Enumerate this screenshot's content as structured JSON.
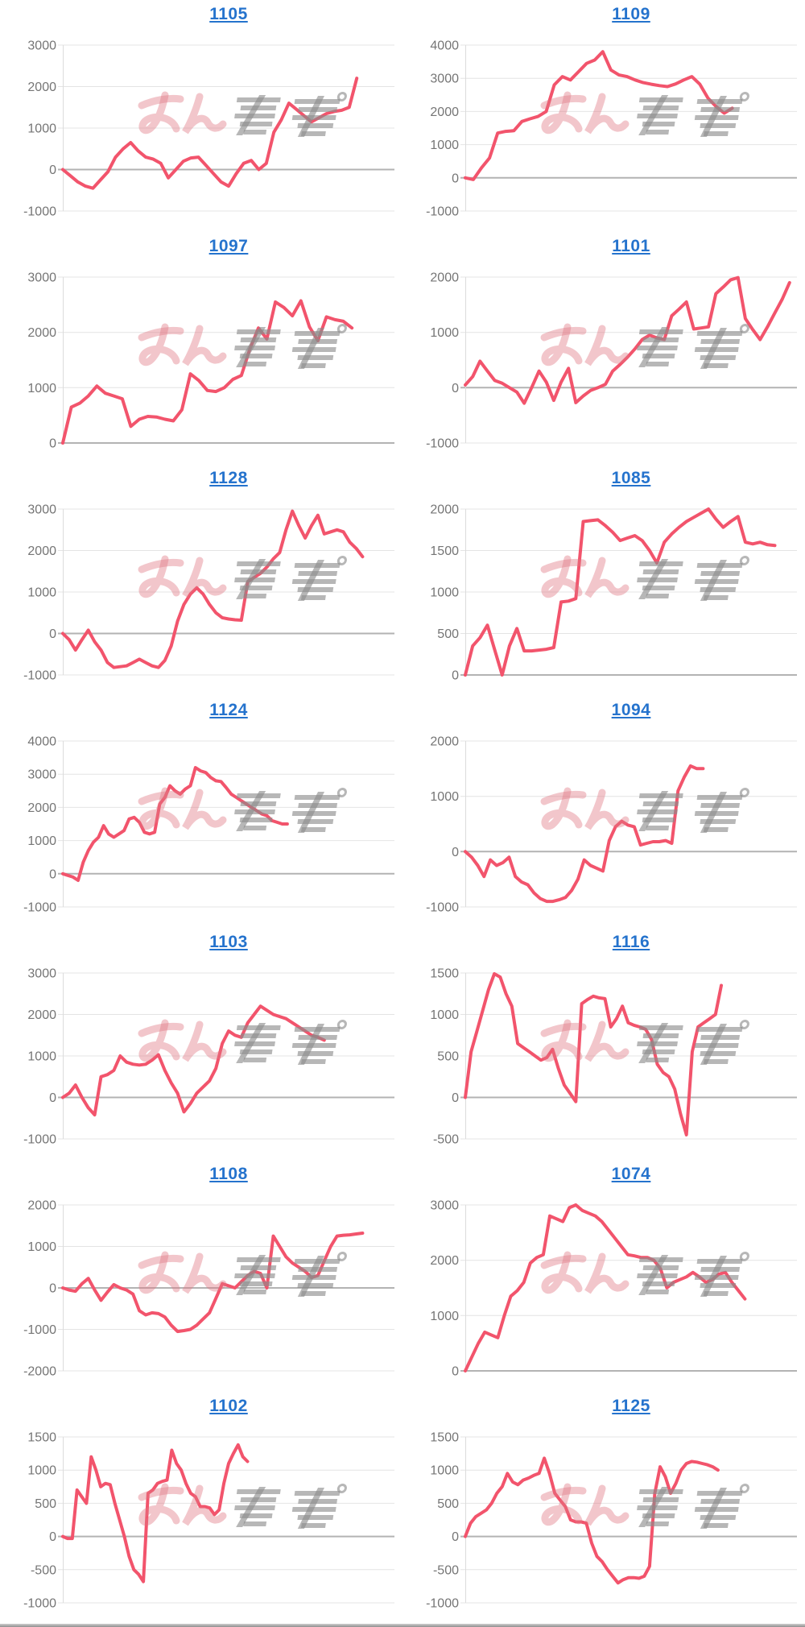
{
  "page": {
    "link_color": "#2573cd",
    "line_color": "#f2546c",
    "grid_color": "#e4e4e4",
    "zero_line_color": "#b3b3b3",
    "axis_line_color": "#dcdcdc",
    "tick_label_color": "#757575",
    "watermark": {
      "pink_text": "みん",
      "gray_text": "レポ",
      "pink_color": "rgba(225,118,130,0.42)",
      "gray_color": "rgba(138,138,138,0.62)"
    }
  },
  "chart_data": [
    {
      "type": "line",
      "title": "1105",
      "ylim": [
        -1000,
        3000
      ],
      "ytick": 1000,
      "slots": 45,
      "values": [
        0,
        -150,
        -300,
        -400,
        -450,
        -250,
        -50,
        300,
        500,
        650,
        450,
        300,
        250,
        150,
        -200,
        0,
        200,
        280,
        300,
        100,
        -100,
        -300,
        -400,
        -100,
        150,
        220,
        0,
        150,
        900,
        1200,
        1600,
        1450,
        1300,
        1150,
        1250,
        1350,
        1400,
        1430,
        1500,
        2200
      ]
    },
    {
      "type": "line",
      "title": "1109",
      "ylim": [
        -1000,
        4000
      ],
      "ytick": 1000,
      "slots": 42,
      "values": [
        0,
        -50,
        300,
        600,
        1350,
        1400,
        1420,
        1700,
        1780,
        1850,
        2000,
        2800,
        3050,
        2950,
        3200,
        3450,
        3550,
        3800,
        3250,
        3100,
        3050,
        2950,
        2870,
        2820,
        2780,
        2750,
        2830,
        2950,
        3050,
        2820,
        2400,
        2150,
        1950,
        2100
      ]
    },
    {
      "type": "line",
      "title": "1097",
      "ylim": [
        0,
        3000
      ],
      "ytick": 1000,
      "slots": 40,
      "values": [
        0,
        650,
        720,
        850,
        1030,
        900,
        850,
        800,
        300,
        430,
        480,
        470,
        430,
        400,
        600,
        1250,
        1130,
        950,
        930,
        1000,
        1150,
        1220,
        1700,
        2080,
        1880,
        2550,
        2450,
        2300,
        2570,
        2100,
        1850,
        2280,
        2230,
        2200,
        2080
      ]
    },
    {
      "type": "line",
      "title": "1101",
      "ylim": [
        -1000,
        2000
      ],
      "ytick": 1000,
      "slots": 46,
      "values": [
        50,
        200,
        480,
        300,
        130,
        80,
        0,
        -80,
        -280,
        0,
        300,
        100,
        -230,
        100,
        350,
        -270,
        -150,
        -50,
        0,
        60,
        300,
        420,
        550,
        700,
        870,
        950,
        900,
        870,
        1300,
        1420,
        1550,
        1060,
        1080,
        1100,
        1700,
        1820,
        1950,
        1990,
        1250,
        1050,
        870,
        1100,
        1350,
        1600,
        1900
      ]
    },
    {
      "type": "line",
      "title": "1128",
      "ylim": [
        -1000,
        3000
      ],
      "ytick": 1000,
      "slots": 53,
      "values": [
        0,
        -150,
        -400,
        -150,
        80,
        -200,
        -400,
        -700,
        -820,
        -800,
        -780,
        -700,
        -620,
        -700,
        -780,
        -820,
        -650,
        -300,
        300,
        700,
        950,
        1100,
        950,
        700,
        500,
        380,
        350,
        330,
        320,
        1250,
        1350,
        1450,
        1600,
        1800,
        1950,
        2500,
        2950,
        2600,
        2300,
        2600,
        2850,
        2400,
        2450,
        2500,
        2450,
        2200,
        2050,
        1850
      ]
    },
    {
      "type": "line",
      "title": "1085",
      "ylim": [
        0,
        2000
      ],
      "ytick": 500,
      "slots": 46,
      "values": [
        0,
        350,
        450,
        600,
        300,
        0,
        350,
        560,
        290,
        290,
        300,
        310,
        330,
        880,
        890,
        920,
        1850,
        1860,
        1870,
        1800,
        1720,
        1620,
        1650,
        1680,
        1620,
        1500,
        1350,
        1600,
        1700,
        1780,
        1850,
        1900,
        1950,
        2000,
        1880,
        1780,
        1850,
        1910,
        1600,
        1580,
        1600,
        1570,
        1560
      ]
    },
    {
      "type": "line",
      "title": "1124",
      "ylim": [
        -1000,
        4000
      ],
      "ytick": 1000,
      "slots": 66,
      "values": [
        0,
        -50,
        -100,
        -200,
        350,
        700,
        950,
        1100,
        1450,
        1200,
        1100,
        1200,
        1300,
        1650,
        1700,
        1550,
        1250,
        1200,
        1250,
        2100,
        2300,
        2650,
        2500,
        2400,
        2550,
        2650,
        3200,
        3100,
        3050,
        2900,
        2800,
        2780,
        2600,
        2400,
        2300,
        2200,
        2100,
        2000,
        1900,
        1800,
        1750,
        1600,
        1550,
        1500,
        1500
      ]
    },
    {
      "type": "line",
      "title": "1094",
      "ylim": [
        -1000,
        2000
      ],
      "ytick": 1000,
      "slots": 54,
      "values": [
        0,
        -100,
        -250,
        -450,
        -150,
        -250,
        -200,
        -100,
        -450,
        -550,
        -600,
        -750,
        -850,
        -900,
        -900,
        -870,
        -830,
        -700,
        -500,
        -150,
        -250,
        -300,
        -350,
        200,
        450,
        550,
        480,
        450,
        120,
        150,
        180,
        180,
        200,
        150,
        1100,
        1350,
        1550,
        1500,
        1500
      ]
    },
    {
      "type": "line",
      "title": "1103",
      "ylim": [
        -1000,
        3000
      ],
      "ytick": 1000,
      "slots": 53,
      "values": [
        0,
        100,
        300,
        0,
        -250,
        -420,
        500,
        550,
        650,
        1000,
        850,
        800,
        780,
        800,
        900,
        1030,
        650,
        350,
        100,
        -350,
        -150,
        100,
        250,
        400,
        700,
        1300,
        1600,
        1500,
        1450,
        1800,
        2000,
        2200,
        2100,
        2000,
        1950,
        1900,
        1800,
        1700,
        1600,
        1500,
        1450,
        1380
      ]
    },
    {
      "type": "line",
      "title": "1116",
      "ylim": [
        -500,
        1500
      ],
      "ytick": 500,
      "slots": 58,
      "values": [
        0,
        550,
        800,
        1050,
        1300,
        1490,
        1450,
        1250,
        1100,
        650,
        600,
        550,
        500,
        450,
        480,
        580,
        350,
        150,
        50,
        -50,
        1130,
        1180,
        1220,
        1200,
        1190,
        850,
        950,
        1100,
        900,
        870,
        850,
        820,
        700,
        400,
        300,
        250,
        100,
        -200,
        -450,
        550,
        850,
        900,
        950,
        1000,
        1350
      ]
    },
    {
      "type": "line",
      "title": "1108",
      "ylim": [
        -2000,
        2000
      ],
      "ytick": 1000,
      "slots": 53,
      "values": [
        0,
        -50,
        -80,
        100,
        230,
        -50,
        -300,
        -100,
        80,
        0,
        -50,
        -150,
        -550,
        -650,
        -600,
        -620,
        -700,
        -900,
        -1050,
        -1030,
        -1000,
        -900,
        -750,
        -600,
        -250,
        100,
        50,
        0,
        150,
        300,
        400,
        350,
        0,
        1250,
        1000,
        750,
        600,
        500,
        400,
        250,
        300,
        650,
        1000,
        1250,
        1270,
        1280,
        1300,
        1320
      ]
    },
    {
      "type": "line",
      "title": "1074",
      "ylim": [
        0,
        3000
      ],
      "ytick": 1000,
      "slots": 52,
      "values": [
        0,
        250,
        500,
        700,
        650,
        600,
        1000,
        1350,
        1450,
        1600,
        1950,
        2050,
        2100,
        2800,
        2750,
        2700,
        2950,
        3000,
        2900,
        2850,
        2800,
        2700,
        2550,
        2400,
        2250,
        2100,
        2080,
        2050,
        2050,
        2000,
        1850,
        1500,
        1600,
        1650,
        1700,
        1780,
        1700,
        1600,
        1650,
        1750,
        1780,
        1600,
        1450,
        1300
      ]
    },
    {
      "type": "line",
      "title": "1102",
      "ylim": [
        -1000,
        1500
      ],
      "ytick": 500,
      "slots": 71,
      "values": [
        0,
        -30,
        -30,
        700,
        600,
        500,
        1200,
        1000,
        750,
        800,
        780,
        500,
        250,
        0,
        -300,
        -500,
        -570,
        -680,
        650,
        700,
        800,
        830,
        850,
        1300,
        1100,
        1000,
        800,
        650,
        600,
        450,
        450,
        430,
        330,
        400,
        800,
        1100,
        1250,
        1380,
        1200,
        1130
      ]
    },
    {
      "type": "line",
      "title": "1125",
      "ylim": [
        -1000,
        1500
      ],
      "ytick": 500,
      "slots": 64,
      "values": [
        0,
        200,
        300,
        350,
        400,
        500,
        650,
        750,
        950,
        820,
        780,
        850,
        880,
        920,
        950,
        1180,
        950,
        650,
        550,
        450,
        250,
        220,
        220,
        200,
        -100,
        -300,
        -380,
        -500,
        -600,
        -700,
        -650,
        -620,
        -620,
        -630,
        -600,
        -450,
        650,
        1050,
        900,
        650,
        800,
        1000,
        1100,
        1130,
        1120,
        1100,
        1080,
        1050,
        1000
      ]
    }
  ]
}
